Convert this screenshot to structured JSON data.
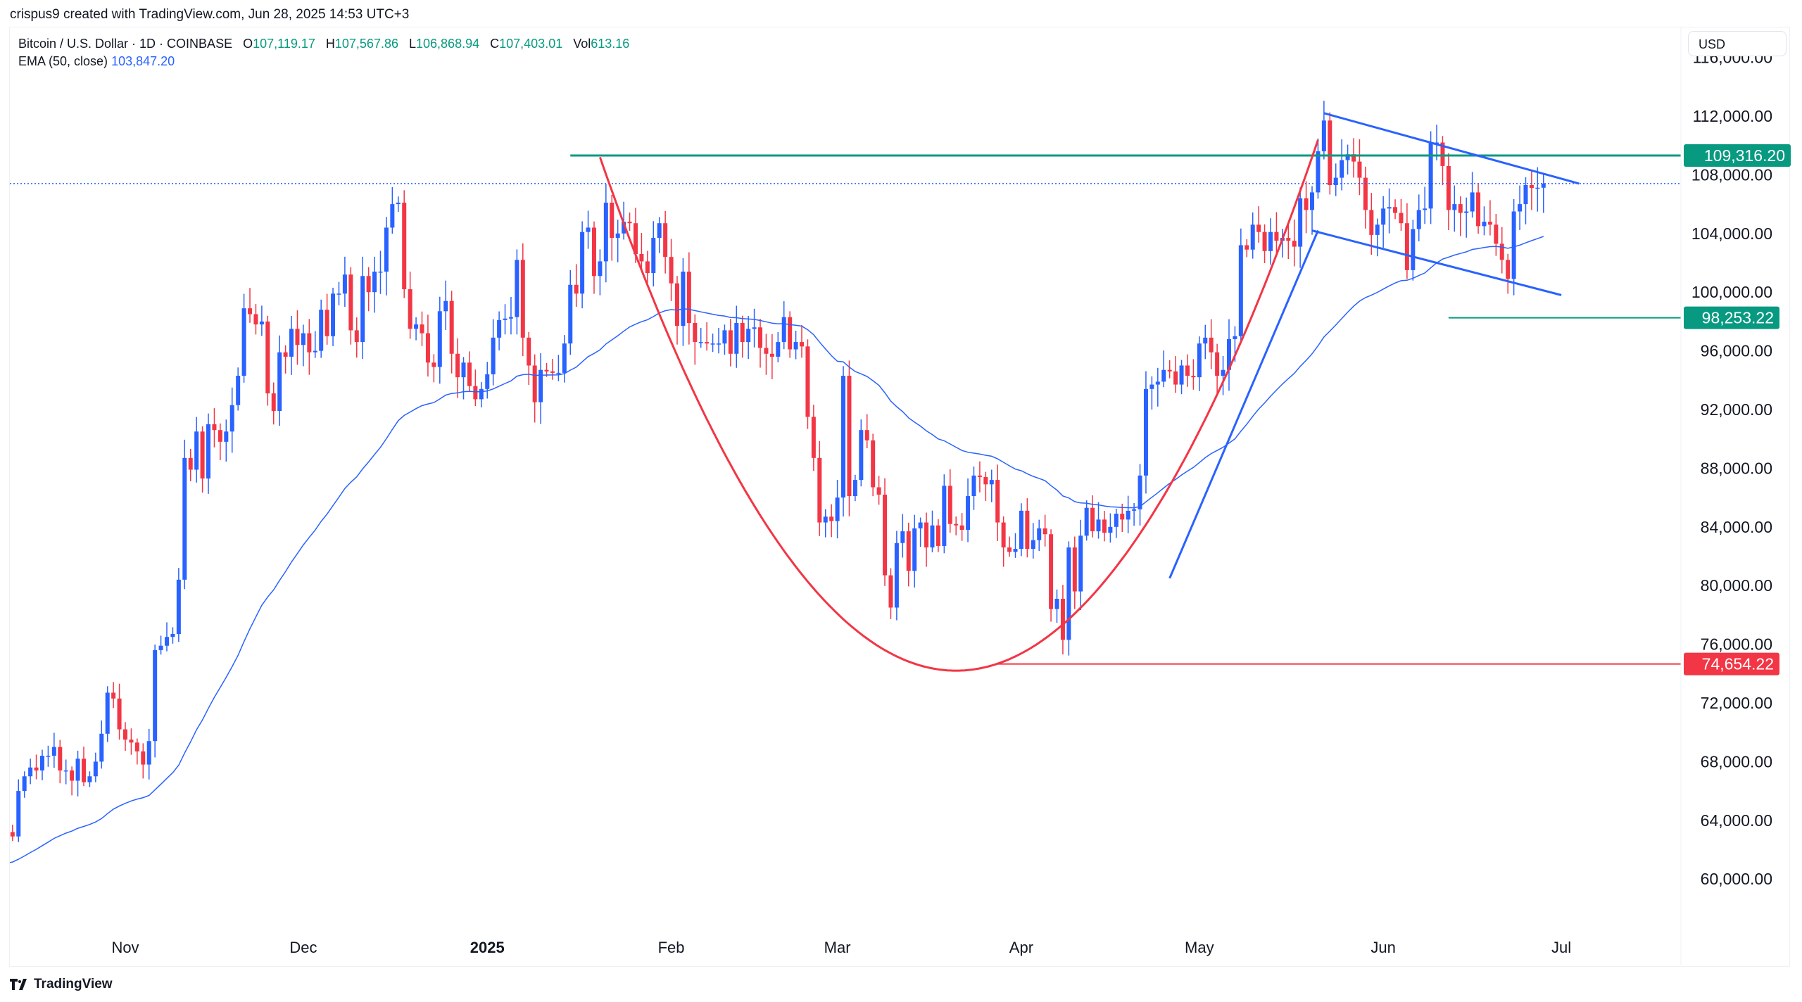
{
  "credit": "crispus9 created with TradingView.com, Jun 28, 2025 14:53 UTC+3",
  "legend": {
    "symbol": "Bitcoin / U.S. Dollar · 1D · COINBASE",
    "o_label": "O",
    "o": "107,119.17",
    "h_label": "H",
    "h": "107,567.86",
    "l_label": "L",
    "l": "106,868.94",
    "c_label": "C",
    "c": "107,403.01",
    "vol_label": "Vol",
    "vol": "613.16",
    "ema_label": "EMA (50, close)",
    "ema": "103,847.20"
  },
  "currency": "USD",
  "footer": "TradingView",
  "colors": {
    "up": "#2962ff",
    "down": "#f23645",
    "ema": "#2962ff",
    "green": "#089981",
    "red": "#f23645"
  },
  "chart_data": {
    "type": "candlestick",
    "title": "Bitcoin / U.S. Dollar · 1D · COINBASE",
    "start_date": "2024-10-12",
    "ylim": [
      58000,
      117000
    ],
    "y_ticks": [
      "60,000.00",
      "64,000.00",
      "68,000.00",
      "72,000.00",
      "76,000.00",
      "80,000.00",
      "84,000.00",
      "88,000.00",
      "92,000.00",
      "96,000.00",
      "100,000.00",
      "104,000.00",
      "108,000.00",
      "112,000.00",
      "116,000.00"
    ],
    "y_tick_values": [
      60000,
      64000,
      68000,
      72000,
      76000,
      80000,
      84000,
      88000,
      92000,
      96000,
      100000,
      104000,
      108000,
      112000,
      116000
    ],
    "x_labels": [
      {
        "label": "Nov",
        "date": "2024-11-01"
      },
      {
        "label": "Dec",
        "date": "2024-12-01"
      },
      {
        "label": "2025",
        "date": "2025-01-01",
        "bold": true
      },
      {
        "label": "Feb",
        "date": "2025-02-01"
      },
      {
        "label": "Mar",
        "date": "2025-03-01"
      },
      {
        "label": "Apr",
        "date": "2025-04-01"
      },
      {
        "label": "May",
        "date": "2025-05-01"
      },
      {
        "label": "Jun",
        "date": "2025-06-01"
      },
      {
        "label": "Jul",
        "date": "2025-07-01"
      }
    ],
    "first_open": 62400,
    "closes": [
      63200,
      62900,
      66000,
      67000,
      67600,
      67400,
      68400,
      68400,
      69000,
      67400,
      67400,
      66700,
      68200,
      66600,
      67000,
      68000,
      69900,
      72700,
      72300,
      70200,
      69500,
      69300,
      68700,
      67800,
      69400,
      75600,
      75900,
      76500,
      76700,
      80400,
      88700,
      87900,
      90500,
      87300,
      91000,
      90600,
      89800,
      90500,
      92300,
      94300,
      98900,
      98500,
      97800,
      98000,
      93100,
      91900,
      95900,
      95600,
      97500,
      96400,
      97200,
      95900,
      96000,
      98800,
      97000,
      99900,
      99900,
      101200,
      97400,
      96600,
      101100,
      100000,
      101400,
      101400,
      104400,
      106000,
      106100,
      100200,
      97500,
      97800,
      97200,
      95200,
      94900,
      98700,
      99400,
      95800,
      94200,
      95200,
      93600,
      92700,
      93400,
      94400,
      96900,
      98100,
      98200,
      98300,
      102200,
      96900,
      95000,
      92500,
      94700,
      94600,
      94500,
      94500,
      96500,
      100500,
      99900,
      104100,
      104400,
      101100,
      102100,
      106100,
      103700,
      104000,
      104800,
      104700,
      102600,
      102100,
      101300,
      103700,
      104700,
      102400,
      100600,
      97700,
      101400,
      97900,
      96600,
      96600,
      96500,
      96500,
      96500,
      97400,
      95800,
      97900,
      96600,
      97500,
      97600,
      96200,
      95800,
      95600,
      96600,
      98300,
      96100,
      96600,
      96300,
      91500,
      88700,
      84300,
      84700,
      84400,
      86000,
      94300,
      86100,
      87200,
      90600,
      89900,
      86700,
      86200,
      80700,
      78500,
      82900,
      83700,
      81000,
      83900,
      84300,
      82600,
      84100,
      82700,
      86800,
      84200,
      84100,
      83800,
      86100,
      87500,
      87400,
      86900,
      87200,
      84300,
      82600,
      82300,
      82500,
      85100,
      82500,
      83100,
      83900,
      83500,
      78400,
      79100,
      76300,
      82600,
      79600,
      83400,
      85300,
      83700,
      84500,
      83600,
      84000,
      84900,
      84500,
      85100,
      85200,
      87500,
      93400,
      93700,
      93900,
      94700,
      94600,
      93700,
      95000,
      94300,
      94200,
      96500,
      96900,
      95900,
      94300,
      94700,
      96800,
      97000,
      103200,
      102900,
      104600,
      104100,
      102800,
      104100,
      103500,
      103700,
      103500,
      103100,
      106400,
      105600,
      106800,
      109600,
      111700,
      107300,
      107800,
      109000,
      109400,
      108900,
      107800,
      105600,
      103900,
      104600,
      105700,
      105800,
      105400,
      104700,
      101500,
      104300,
      105600,
      105700,
      110200,
      110200,
      108600,
      105600,
      106000,
      105400,
      105500,
      106800,
      104500,
      104800,
      104600,
      103300,
      102200,
      100900,
      105500,
      106000,
      107300,
      107100,
      107119,
      107403
    ],
    "ema_period": 50,
    "ema_seed": 61000,
    "current_price": 107403.01,
    "levels": [
      {
        "name": "resistance",
        "value": 109316.2,
        "label": "109,316.20",
        "from": "2025-01-15",
        "color": "green"
      },
      {
        "name": "support",
        "value": 98253.22,
        "label": "98,253.22",
        "from": "2025-06-12",
        "color": "green"
      },
      {
        "name": "cup-low",
        "value": 74654.22,
        "label": "74,654.22",
        "from": "2025-03-28",
        "color": "red"
      }
    ],
    "drawings": {
      "cup": {
        "from": "2025-01-20",
        "to": "2025-05-21",
        "vertex_date": "2025-03-21",
        "vertex_price": 74200,
        "start_price": 109200
      },
      "channel_upper": [
        [
          "2025-05-22",
          112200
        ],
        [
          "2025-07-04",
          107400
        ]
      ],
      "channel_lower": [
        [
          "2025-05-20",
          104200
        ],
        [
          "2025-07-01",
          99800
        ]
      ],
      "trend_up": [
        [
          "2025-04-26",
          80500
        ],
        [
          "2025-05-21",
          104200
        ]
      ]
    }
  }
}
